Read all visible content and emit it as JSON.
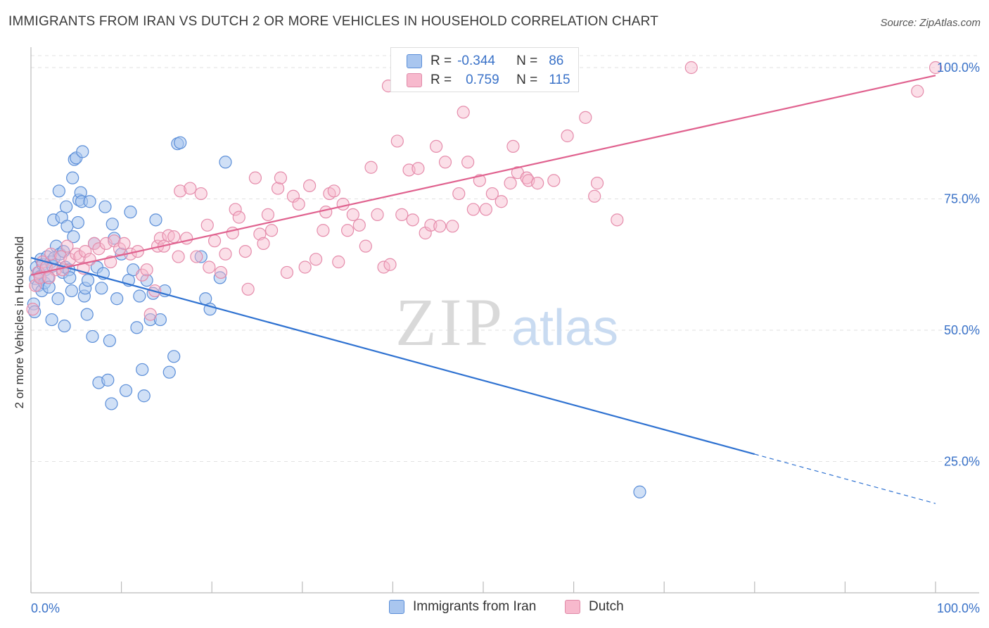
{
  "header": {
    "title": "IMMIGRANTS FROM IRAN VS DUTCH 2 OR MORE VEHICLES IN HOUSEHOLD CORRELATION CHART",
    "source": "Source: ZipAtlas.com"
  },
  "watermark": {
    "zip": "ZIP",
    "atlas": "atlas"
  },
  "legend_top": [
    {
      "r_label": "R =",
      "r_value": "-0.344",
      "n_label": "N =",
      "n_value": "86",
      "color": "#a9c6ef",
      "stroke": "#5b8ed8"
    },
    {
      "r_label": "R =",
      "r_value": "0.759",
      "n_label": "N =",
      "n_value": "115",
      "color": "#f7b9cd",
      "stroke": "#e08aa8"
    }
  ],
  "colors": {
    "iran_fill": "#a9c6ef",
    "iran_stroke": "#5b8ed8",
    "iran_line": "#2f72d1",
    "dutch_fill": "#f7b9cd",
    "dutch_stroke": "#e58cab",
    "dutch_line": "#e0628f",
    "tick_label": "#3a72c8",
    "grid": "#e2e2e2"
  },
  "chart_data": {
    "type": "scatter",
    "title": "IMMIGRANTS FROM IRAN VS DUTCH 2 OR MORE VEHICLES IN HOUSEHOLD CORRELATION CHART",
    "xlabel": "",
    "ylabel": "2 or more Vehicles in Household",
    "xlim": [
      0,
      100
    ],
    "ylim": [
      0,
      103
    ],
    "x_tick_labels": [
      "0.0%",
      "100.0%"
    ],
    "y_ticks": [
      25,
      50,
      75,
      100
    ],
    "y_tick_labels": [
      "25.0%",
      "50.0%",
      "75.0%",
      "100.0%"
    ],
    "grid": true,
    "legend_position": "bottom-center",
    "series": [
      {
        "name": "Immigrants from Iran",
        "r": -0.344,
        "n": 86,
        "trend": {
          "x": [
            0,
            80
          ],
          "y": [
            63.8,
            26.4
          ],
          "dashed_to": [
            100,
            17.0
          ]
        },
        "points": [
          [
            0.3,
            55.0
          ],
          [
            0.5,
            59.8
          ],
          [
            0.6,
            62.0
          ],
          [
            0.8,
            58.5
          ],
          [
            0.9,
            61.0
          ],
          [
            1.0,
            60.2
          ],
          [
            1.1,
            63.5
          ],
          [
            1.2,
            57.5
          ],
          [
            1.3,
            62.5
          ],
          [
            1.5,
            59.0
          ],
          [
            1.6,
            61.5
          ],
          [
            1.8,
            64.0
          ],
          [
            1.9,
            60.0
          ],
          [
            2.0,
            58.2
          ],
          [
            2.2,
            63.0
          ],
          [
            2.3,
            52.0
          ],
          [
            2.4,
            62.2
          ],
          [
            2.5,
            71.0
          ],
          [
            2.6,
            63.8
          ],
          [
            2.8,
            66.0
          ],
          [
            3.0,
            56.0
          ],
          [
            3.1,
            76.5
          ],
          [
            3.2,
            64.5
          ],
          [
            3.4,
            71.5
          ],
          [
            3.5,
            61.0
          ],
          [
            3.6,
            65.0
          ],
          [
            3.7,
            50.8
          ],
          [
            3.8,
            62.0
          ],
          [
            3.9,
            73.5
          ],
          [
            4.0,
            69.8
          ],
          [
            4.2,
            61.5
          ],
          [
            4.3,
            60.0
          ],
          [
            4.5,
            57.5
          ],
          [
            4.6,
            79.0
          ],
          [
            4.7,
            67.8
          ],
          [
            4.8,
            82.5
          ],
          [
            5.0,
            82.8
          ],
          [
            5.2,
            70.5
          ],
          [
            5.3,
            74.8
          ],
          [
            5.5,
            76.2
          ],
          [
            5.6,
            74.5
          ],
          [
            5.7,
            84.0
          ],
          [
            5.9,
            56.5
          ],
          [
            6.0,
            58.0
          ],
          [
            6.2,
            53.0
          ],
          [
            6.3,
            59.5
          ],
          [
            6.5,
            74.5
          ],
          [
            6.8,
            48.8
          ],
          [
            7.0,
            66.5
          ],
          [
            7.3,
            62.0
          ],
          [
            7.5,
            40.0
          ],
          [
            7.8,
            58.0
          ],
          [
            8.0,
            60.8
          ],
          [
            8.2,
            73.5
          ],
          [
            8.5,
            40.5
          ],
          [
            8.7,
            48.0
          ],
          [
            8.9,
            36.0
          ],
          [
            9.0,
            70.2
          ],
          [
            9.2,
            67.5
          ],
          [
            9.5,
            56.0
          ],
          [
            10.0,
            64.5
          ],
          [
            10.5,
            38.5
          ],
          [
            10.8,
            59.5
          ],
          [
            11.0,
            72.5
          ],
          [
            11.3,
            61.5
          ],
          [
            11.7,
            50.5
          ],
          [
            12.0,
            56.5
          ],
          [
            12.3,
            42.5
          ],
          [
            12.5,
            37.5
          ],
          [
            12.8,
            59.5
          ],
          [
            13.2,
            52.0
          ],
          [
            13.5,
            57.0
          ],
          [
            13.8,
            71.0
          ],
          [
            14.3,
            52.0
          ],
          [
            14.8,
            57.5
          ],
          [
            15.3,
            42.0
          ],
          [
            15.8,
            45.0
          ],
          [
            16.2,
            85.5
          ],
          [
            16.5,
            85.7
          ],
          [
            18.8,
            64.0
          ],
          [
            19.3,
            56.0
          ],
          [
            19.8,
            54.0
          ],
          [
            20.9,
            60.0
          ],
          [
            21.5,
            82.0
          ],
          [
            67.3,
            19.2
          ],
          [
            0.4,
            53.5
          ]
        ]
      },
      {
        "name": "Dutch",
        "r": 0.759,
        "n": 115,
        "trend": {
          "x": [
            0,
            100
          ],
          "y": [
            60.5,
            98.5
          ]
        },
        "points": [
          [
            0.2,
            54.0
          ],
          [
            0.5,
            58.5
          ],
          [
            0.8,
            61.0
          ],
          [
            1.0,
            60.0
          ],
          [
            1.3,
            63.0
          ],
          [
            1.7,
            62.0
          ],
          [
            2.2,
            64.5
          ],
          [
            2.7,
            61.5
          ],
          [
            3.3,
            64.0
          ],
          [
            4.0,
            66.0
          ],
          [
            4.3,
            63.5
          ],
          [
            5.0,
            64.5
          ],
          [
            5.4,
            64.0
          ],
          [
            5.8,
            61.8
          ],
          [
            6.0,
            65.0
          ],
          [
            6.5,
            63.5
          ],
          [
            7.0,
            66.5
          ],
          [
            7.5,
            65.5
          ],
          [
            8.3,
            66.5
          ],
          [
            8.8,
            63.0
          ],
          [
            9.2,
            67.0
          ],
          [
            9.8,
            65.5
          ],
          [
            10.3,
            66.5
          ],
          [
            11.0,
            64.5
          ],
          [
            11.8,
            65.0
          ],
          [
            12.3,
            60.5
          ],
          [
            12.8,
            61.5
          ],
          [
            13.2,
            53.0
          ],
          [
            13.7,
            57.5
          ],
          [
            14.0,
            66.0
          ],
          [
            14.3,
            67.5
          ],
          [
            14.7,
            66.0
          ],
          [
            15.2,
            68.0
          ],
          [
            15.8,
            67.8
          ],
          [
            16.3,
            64.0
          ],
          [
            16.5,
            76.5
          ],
          [
            17.2,
            67.5
          ],
          [
            17.6,
            77.0
          ],
          [
            18.3,
            64.0
          ],
          [
            18.8,
            76.0
          ],
          [
            19.5,
            70.0
          ],
          [
            19.7,
            62.0
          ],
          [
            20.3,
            67.0
          ],
          [
            21.0,
            61.0
          ],
          [
            21.5,
            64.5
          ],
          [
            22.3,
            68.5
          ],
          [
            22.6,
            73.0
          ],
          [
            23.0,
            71.5
          ],
          [
            23.7,
            65.0
          ],
          [
            24.0,
            57.8
          ],
          [
            24.8,
            79.0
          ],
          [
            25.3,
            68.3
          ],
          [
            25.7,
            66.5
          ],
          [
            26.2,
            72.0
          ],
          [
            26.6,
            69.0
          ],
          [
            27.3,
            77.0
          ],
          [
            27.6,
            79.0
          ],
          [
            28.3,
            61.0
          ],
          [
            29.0,
            75.5
          ],
          [
            29.6,
            74.0
          ],
          [
            30.3,
            62.0
          ],
          [
            30.8,
            77.5
          ],
          [
            31.5,
            63.5
          ],
          [
            32.3,
            69.0
          ],
          [
            32.6,
            72.5
          ],
          [
            33.0,
            76.0
          ],
          [
            33.5,
            76.5
          ],
          [
            34.0,
            63.0
          ],
          [
            34.5,
            74.0
          ],
          [
            35.0,
            69.0
          ],
          [
            35.6,
            72.0
          ],
          [
            36.3,
            70.0
          ],
          [
            37.0,
            66.0
          ],
          [
            37.6,
            81.0
          ],
          [
            38.3,
            72.0
          ],
          [
            39.0,
            62.0
          ],
          [
            39.5,
            96.5
          ],
          [
            39.7,
            62.5
          ],
          [
            40.5,
            86.0
          ],
          [
            41.0,
            72.0
          ],
          [
            41.8,
            80.5
          ],
          [
            42.2,
            71.0
          ],
          [
            42.8,
            80.8
          ],
          [
            43.6,
            68.5
          ],
          [
            44.2,
            70.0
          ],
          [
            44.8,
            85.0
          ],
          [
            45.2,
            69.8
          ],
          [
            45.8,
            82.0
          ],
          [
            46.6,
            69.8
          ],
          [
            47.3,
            76.0
          ],
          [
            47.8,
            91.5
          ],
          [
            48.3,
            82.0
          ],
          [
            48.9,
            73.0
          ],
          [
            49.6,
            78.5
          ],
          [
            50.3,
            73.0
          ],
          [
            51.0,
            76.0
          ],
          [
            52.0,
            74.5
          ],
          [
            53.0,
            78.0
          ],
          [
            53.3,
            85.0
          ],
          [
            53.8,
            80.0
          ],
          [
            54.8,
            79.0
          ],
          [
            55.0,
            78.5
          ],
          [
            56.0,
            78.0
          ],
          [
            57.8,
            78.5
          ],
          [
            58.8,
            97.0
          ],
          [
            59.3,
            87.0
          ],
          [
            61.3,
            90.5
          ],
          [
            62.3,
            75.5
          ],
          [
            62.6,
            78.0
          ],
          [
            64.8,
            71.0
          ],
          [
            73.0,
            100.0
          ],
          [
            98.0,
            95.5
          ],
          [
            100.0,
            100.0
          ],
          [
            2.0,
            60.0
          ],
          [
            3.5,
            61.5
          ]
        ]
      }
    ]
  },
  "bottom_legend": [
    {
      "label": "Immigrants from Iran"
    },
    {
      "label": "Dutch"
    }
  ]
}
